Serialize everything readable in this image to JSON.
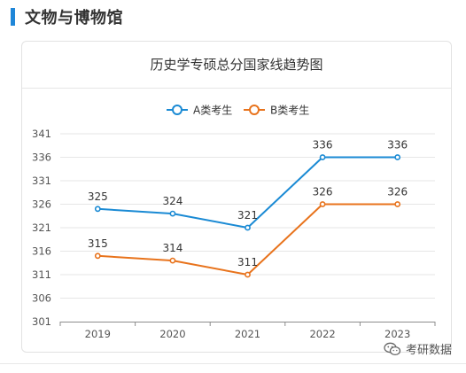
{
  "section": {
    "title": "文物与博物馆",
    "accent_color": "#1f86d8"
  },
  "watermark": {
    "text": "考研数据",
    "icon": "wechat-icon"
  },
  "chart_data": {
    "type": "line",
    "title": "历史学专硕总分国家线趋势图",
    "xlabel": "",
    "ylabel": "",
    "categories": [
      "2019",
      "2020",
      "2021",
      "2022",
      "2023"
    ],
    "ylim": [
      301,
      341
    ],
    "yticks": [
      301,
      306,
      311,
      316,
      321,
      326,
      331,
      336,
      341
    ],
    "grid": true,
    "legend_position": "top-center",
    "show_data_labels": true,
    "series": [
      {
        "name": "A类考生",
        "values": [
          325,
          324,
          321,
          336,
          336
        ],
        "color": "#1a8ad4"
      },
      {
        "name": "B类考生",
        "values": [
          315,
          314,
          311,
          326,
          326
        ],
        "color": "#e8731c"
      }
    ]
  }
}
